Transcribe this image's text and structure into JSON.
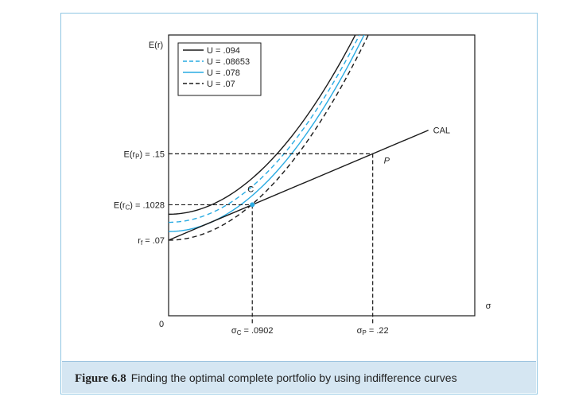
{
  "chart_data": {
    "type": "line",
    "ylabel": "E(r)",
    "xlabel": "σ",
    "origin_label": "0",
    "xlim": [
      0,
      0.33
    ],
    "ylim": [
      0,
      0.26
    ],
    "rf": 0.07,
    "optimal_portfolio": {
      "label": "C",
      "sigma": 0.0902,
      "expected_return": 0.1028
    },
    "risky_portfolio": {
      "label": "P",
      "sigma": 0.22,
      "expected_return": 0.15
    },
    "cal": {
      "name": "CAL",
      "intercept": 0.07,
      "slope": 0.3636,
      "x_end": 0.28
    },
    "utility_curves": [
      {
        "name": "U = .094",
        "U": 0.094,
        "color": "#1a1a1a",
        "dash": "solid"
      },
      {
        "name": "U = .08653",
        "U": 0.08653,
        "color": "#29abe2",
        "dash": "dashed"
      },
      {
        "name": "U = .078",
        "U": 0.078,
        "color": "#29abe2",
        "dash": "solid"
      },
      {
        "name": "U = .07",
        "U": 0.07,
        "color": "#1a1a1a",
        "dash": "dashed"
      }
    ],
    "curve_coef": 4.1,
    "y_ticks": [
      {
        "label_html": "E(r<tspan font-size=\"8\" dy=\"2\">P</tspan><tspan dy=\"-2\">) = .15</tspan>",
        "value": 0.15
      },
      {
        "label_html": "E(r<tspan font-size=\"8\" dy=\"2\">C</tspan><tspan dy=\"-2\">) = .1028</tspan>",
        "value": 0.1028
      },
      {
        "label_html": "r<tspan font-size=\"8\" dy=\"2\">f</tspan><tspan dy=\"-2\"> = .07</tspan>",
        "value": 0.07
      }
    ],
    "x_ticks": [
      {
        "label_html": "σ<tspan font-size=\"8\" dy=\"2\">C</tspan><tspan dy=\"-2\"> = .0902</tspan>",
        "value": 0.0902
      },
      {
        "label_html": "σ<tspan font-size=\"8\" dy=\"2\">P</tspan><tspan dy=\"-2\"> = .22</tspan>",
        "value": 0.22
      }
    ]
  },
  "caption": {
    "label": "Figure 6.8",
    "text": "Finding the optimal complete portfolio by using indifference curves"
  }
}
